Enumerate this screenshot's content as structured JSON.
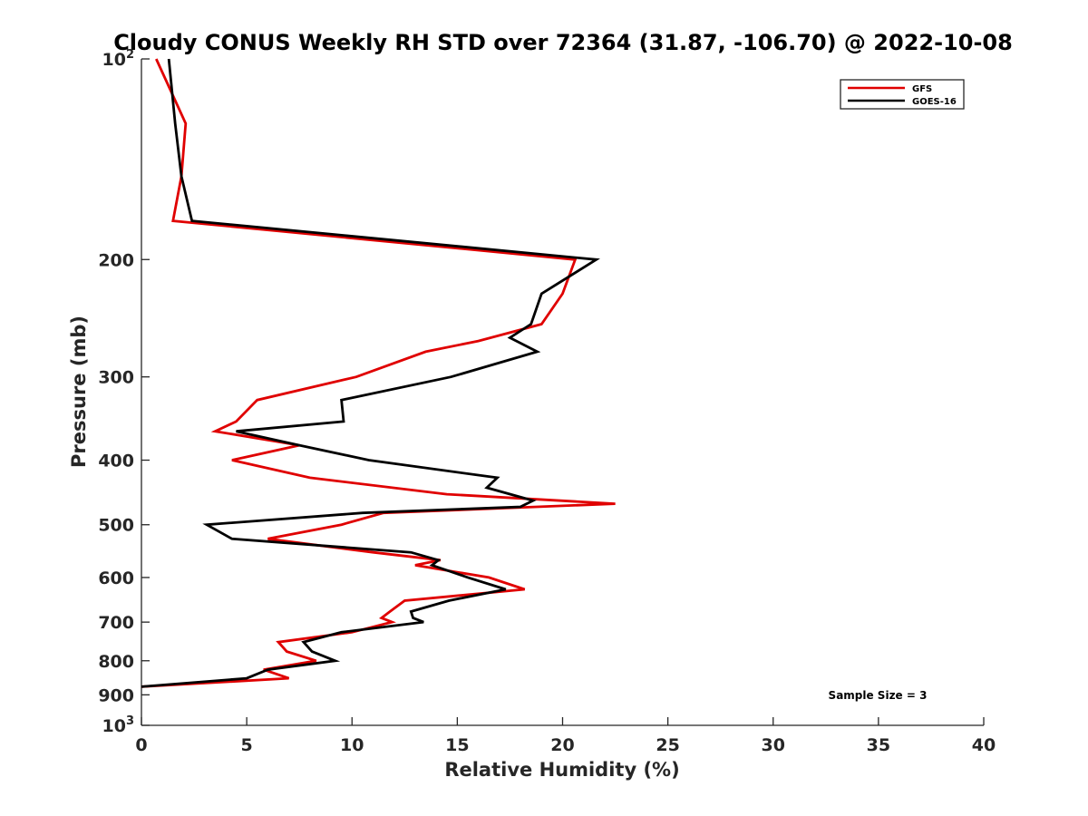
{
  "chart_data": {
    "type": "line",
    "title": "Cloudy CONUS Weekly RH STD over 72364 (31.87, -106.70) @ 2022-10-08",
    "xlabel": "Relative Humidity (%)",
    "ylabel": "Pressure (mb)",
    "xlim": [
      0,
      40
    ],
    "ylim": [
      100,
      1000
    ],
    "y_scale": "log",
    "y_reversed": true,
    "grid": false,
    "x_ticks": [
      0,
      5,
      10,
      15,
      20,
      25,
      30,
      35,
      40
    ],
    "x_tick_labels": [
      "0",
      "5",
      "10",
      "15",
      "20",
      "25",
      "30",
      "35",
      "40"
    ],
    "y_ticks": [
      100,
      200,
      300,
      400,
      500,
      600,
      700,
      800,
      900,
      1000
    ],
    "y_tick_labels": [
      {
        "base": "10",
        "sup": "2"
      },
      {
        "base": "200",
        "sup": ""
      },
      {
        "base": "300",
        "sup": ""
      },
      {
        "base": "400",
        "sup": ""
      },
      {
        "base": "500",
        "sup": ""
      },
      {
        "base": "600",
        "sup": ""
      },
      {
        "base": "700",
        "sup": ""
      },
      {
        "base": "800",
        "sup": ""
      },
      {
        "base": "900",
        "sup": ""
      },
      {
        "base": "10",
        "sup": "3"
      }
    ],
    "legend_position": "top-right",
    "annotation": "Sample Size = 3",
    "series": [
      {
        "name": "GFS",
        "color": "#e00000",
        "points": [
          [
            0.7,
            100
          ],
          [
            2.1,
            125
          ],
          [
            1.9,
            150
          ],
          [
            1.5,
            175
          ],
          [
            20.6,
            200
          ],
          [
            20.0,
            225
          ],
          [
            19.0,
            250
          ],
          [
            16.0,
            265
          ],
          [
            13.5,
            275
          ],
          [
            10.2,
            300
          ],
          [
            5.5,
            325
          ],
          [
            4.5,
            350
          ],
          [
            3.5,
            362
          ],
          [
            7.5,
            380
          ],
          [
            4.3,
            400
          ],
          [
            8.0,
            425
          ],
          [
            14.5,
            450
          ],
          [
            22.5,
            465
          ],
          [
            11.5,
            480
          ],
          [
            9.5,
            500
          ],
          [
            6.0,
            525
          ],
          [
            11.0,
            550
          ],
          [
            14.2,
            565
          ],
          [
            13.0,
            575
          ],
          [
            16.5,
            600
          ],
          [
            18.2,
            625
          ],
          [
            12.5,
            650
          ],
          [
            11.8,
            675
          ],
          [
            11.4,
            690
          ],
          [
            11.9,
            700
          ],
          [
            10.0,
            725
          ],
          [
            6.5,
            750
          ],
          [
            6.9,
            775
          ],
          [
            8.3,
            800
          ],
          [
            5.8,
            825
          ],
          [
            7.0,
            850
          ],
          [
            0.0,
            875
          ]
        ]
      },
      {
        "name": "GOES-16",
        "color": "#000000",
        "points": [
          [
            1.3,
            100
          ],
          [
            1.6,
            125
          ],
          [
            1.9,
            150
          ],
          [
            2.4,
            175
          ],
          [
            21.6,
            200
          ],
          [
            19.0,
            225
          ],
          [
            18.5,
            250
          ],
          [
            17.5,
            262
          ],
          [
            18.8,
            275
          ],
          [
            14.7,
            300
          ],
          [
            9.5,
            325
          ],
          [
            9.6,
            350
          ],
          [
            4.5,
            362
          ],
          [
            7.5,
            380
          ],
          [
            10.8,
            400
          ],
          [
            16.9,
            425
          ],
          [
            16.4,
            440
          ],
          [
            18.6,
            460
          ],
          [
            18.0,
            470
          ],
          [
            10.5,
            480
          ],
          [
            3.1,
            500
          ],
          [
            4.3,
            525
          ],
          [
            12.8,
            550
          ],
          [
            14.1,
            565
          ],
          [
            13.8,
            575
          ],
          [
            15.5,
            600
          ],
          [
            17.3,
            625
          ],
          [
            14.6,
            650
          ],
          [
            12.8,
            675
          ],
          [
            12.9,
            690
          ],
          [
            13.4,
            700
          ],
          [
            9.5,
            725
          ],
          [
            7.7,
            750
          ],
          [
            8.1,
            775
          ],
          [
            9.2,
            800
          ],
          [
            6.0,
            825
          ],
          [
            5.0,
            850
          ],
          [
            0.0,
            875
          ]
        ]
      }
    ]
  }
}
